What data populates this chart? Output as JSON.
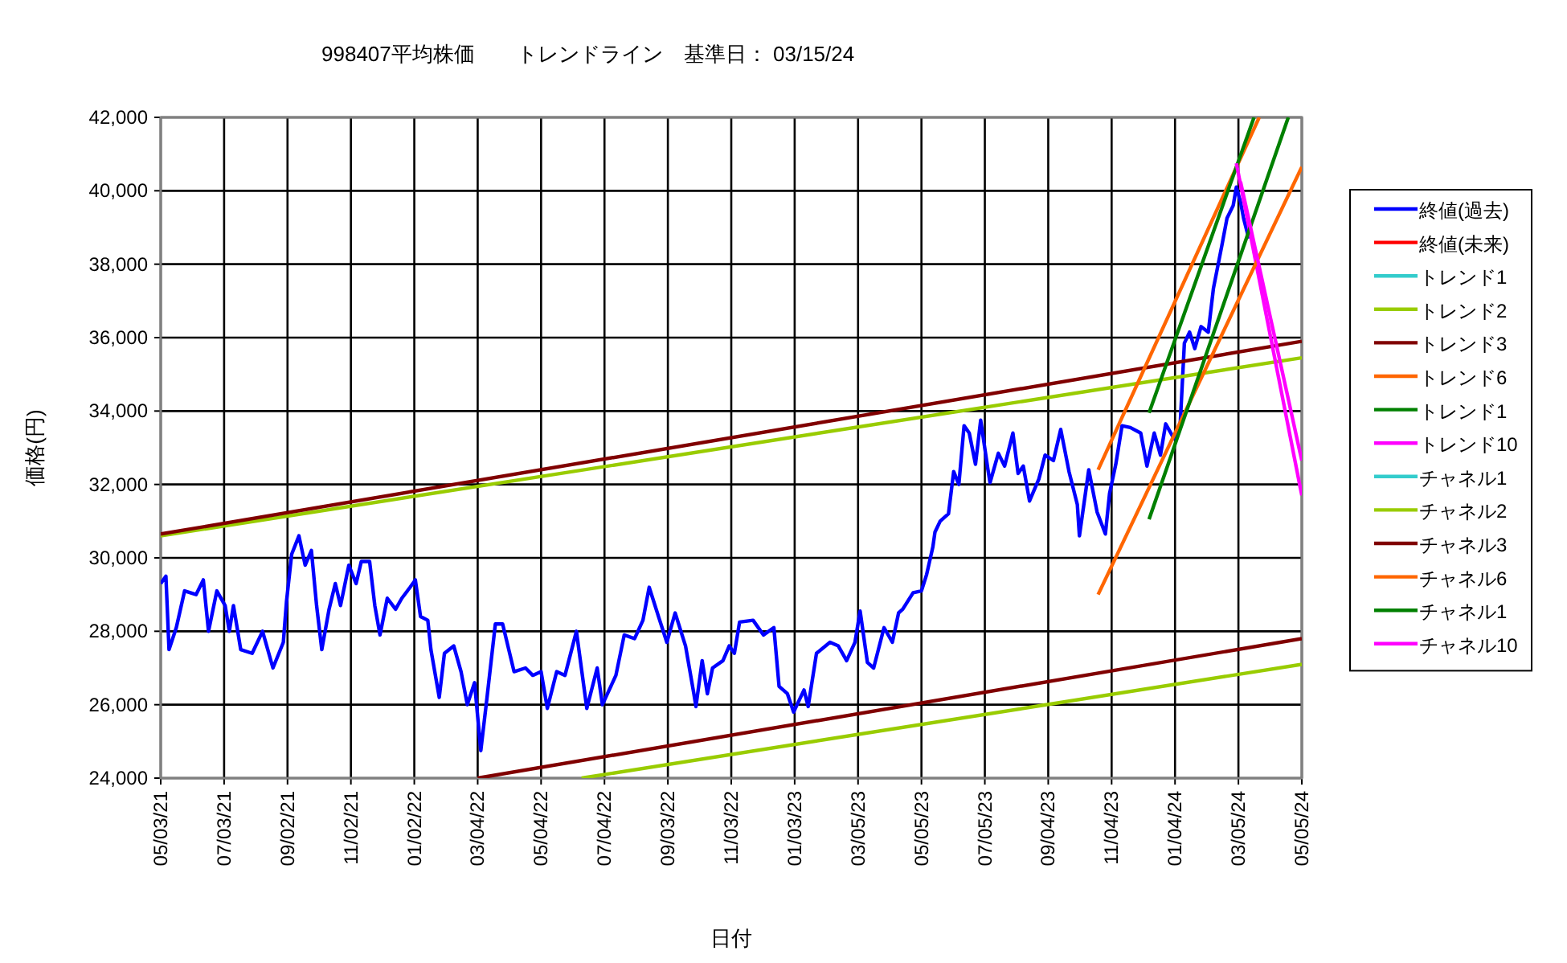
{
  "chart_data": {
    "type": "line",
    "title": "998407平均株価　　トレンドライン　基準日： 03/15/24",
    "xlabel": "日付",
    "ylabel": "価格(円)",
    "legend": "right",
    "grid": true,
    "xlim": [
      "2021-05-03",
      "2024-05-05"
    ],
    "ylim": [
      24000,
      42000
    ],
    "xticks": [
      {
        "value": "2021-05-03",
        "label": "05/03/21"
      },
      {
        "value": "2021-07-03",
        "label": "07/03/21"
      },
      {
        "value": "2021-09-02",
        "label": "09/02/21"
      },
      {
        "value": "2021-11-02",
        "label": "11/02/21"
      },
      {
        "value": "2022-01-02",
        "label": "01/02/22"
      },
      {
        "value": "2022-03-04",
        "label": "03/04/22"
      },
      {
        "value": "2022-05-04",
        "label": "05/04/22"
      },
      {
        "value": "2022-07-04",
        "label": "07/04/22"
      },
      {
        "value": "2022-09-03",
        "label": "09/03/22"
      },
      {
        "value": "2022-11-03",
        "label": "11/03/22"
      },
      {
        "value": "2023-01-03",
        "label": "01/03/23"
      },
      {
        "value": "2023-03-05",
        "label": "03/05/23"
      },
      {
        "value": "2023-05-05",
        "label": "05/05/23"
      },
      {
        "value": "2023-07-05",
        "label": "07/05/23"
      },
      {
        "value": "2023-09-04",
        "label": "09/04/23"
      },
      {
        "value": "2023-11-04",
        "label": "11/04/23"
      },
      {
        "value": "2024-01-04",
        "label": "01/04/24"
      },
      {
        "value": "2024-03-05",
        "label": "03/05/24"
      },
      {
        "value": "2024-05-05",
        "label": "05/05/24"
      }
    ],
    "yticks": [
      {
        "value": 24000,
        "label": "24,000"
      },
      {
        "value": 26000,
        "label": "26,000"
      },
      {
        "value": 28000,
        "label": "28,000"
      },
      {
        "value": 30000,
        "label": "30,000"
      },
      {
        "value": 32000,
        "label": "32,000"
      },
      {
        "value": 34000,
        "label": "34,000"
      },
      {
        "value": 36000,
        "label": "36,000"
      },
      {
        "value": 38000,
        "label": "38,000"
      },
      {
        "value": 40000,
        "label": "40,000"
      },
      {
        "value": 42000,
        "label": "42,000"
      }
    ],
    "series": [
      {
        "name": "終値(過去)",
        "color": "#0000ff",
        "x": [
          "2021-05-03",
          "2021-05-08",
          "2021-05-11",
          "2021-05-18",
          "2021-05-26",
          "2021-06-06",
          "2021-06-13",
          "2021-06-18",
          "2021-06-26",
          "2021-07-04",
          "2021-07-08",
          "2021-07-12",
          "2021-07-19",
          "2021-07-30",
          "2021-08-09",
          "2021-08-19",
          "2021-08-29",
          "2021-09-01",
          "2021-09-06",
          "2021-09-13",
          "2021-09-19",
          "2021-09-25",
          "2021-09-30",
          "2021-10-05",
          "2021-10-12",
          "2021-10-18",
          "2021-10-23",
          "2021-10-31",
          "2021-11-07",
          "2021-11-12",
          "2021-11-20",
          "2021-11-25",
          "2021-11-30",
          "2021-12-07",
          "2021-12-15",
          "2021-12-21",
          "2021-12-29",
          "2022-01-03",
          "2022-01-08",
          "2022-01-15",
          "2022-01-18",
          "2022-01-26",
          "2022-01-31",
          "2022-02-09",
          "2022-02-16",
          "2022-02-22",
          "2022-03-01",
          "2022-03-07",
          "2022-03-13",
          "2022-03-21",
          "2022-03-28",
          "2022-04-08",
          "2022-04-19",
          "2022-04-26",
          "2022-05-04",
          "2022-05-10",
          "2022-05-19",
          "2022-05-27",
          "2022-06-07",
          "2022-06-17",
          "2022-06-27",
          "2022-07-02",
          "2022-07-15",
          "2022-07-23",
          "2022-08-02",
          "2022-08-10",
          "2022-08-16",
          "2022-08-25",
          "2022-09-02",
          "2022-09-10",
          "2022-09-20",
          "2022-09-28",
          "2022-09-30",
          "2022-10-06",
          "2022-10-11",
          "2022-10-16",
          "2022-10-26",
          "2022-11-01",
          "2022-11-06",
          "2022-11-11",
          "2022-11-24",
          "2022-12-04",
          "2022-12-14",
          "2022-12-19",
          "2022-12-27",
          "2023-01-02",
          "2023-01-12",
          "2023-01-16",
          "2023-01-24",
          "2023-02-06",
          "2023-02-14",
          "2023-02-22",
          "2023-03-02",
          "2023-03-07",
          "2023-03-14",
          "2023-03-20",
          "2023-03-30",
          "2023-04-07",
          "2023-04-13",
          "2023-04-17",
          "2023-04-27",
          "2023-05-05",
          "2023-05-10",
          "2023-05-16",
          "2023-05-18",
          "2023-05-23",
          "2023-05-31",
          "2023-06-05",
          "2023-06-10",
          "2023-06-15",
          "2023-06-20",
          "2023-06-26",
          "2023-07-01",
          "2023-07-08",
          "2023-07-10",
          "2023-07-18",
          "2023-07-24",
          "2023-08-01",
          "2023-08-06",
          "2023-08-11",
          "2023-08-17",
          "2023-08-26",
          "2023-09-01",
          "2023-09-09",
          "2023-09-16",
          "2023-09-24",
          "2023-10-02",
          "2023-10-04",
          "2023-10-13",
          "2023-10-21",
          "2023-10-29",
          "2023-11-02",
          "2023-11-08",
          "2023-11-14",
          "2023-11-22",
          "2023-12-02",
          "2023-12-08",
          "2023-12-15",
          "2023-12-21",
          "2023-12-26",
          "2024-01-03",
          "2024-01-09",
          "2024-01-13",
          "2024-01-18",
          "2024-01-23",
          "2024-01-29",
          "2024-02-05",
          "2024-02-10",
          "2024-02-18",
          "2024-02-23",
          "2024-02-29",
          "2024-03-03",
          "2024-03-07",
          "2024-03-10",
          "2024-03-15"
        ],
        "values": [
          29300,
          29500,
          27500,
          28100,
          29100,
          29000,
          29400,
          28000,
          29100,
          28700,
          28000,
          28700,
          27500,
          27400,
          28000,
          27000,
          27700,
          28800,
          30100,
          30600,
          29800,
          30200,
          28700,
          27500,
          28600,
          29300,
          28700,
          29800,
          29300,
          29900,
          29900,
          28700,
          27900,
          28900,
          28600,
          28900,
          29200,
          29400,
          28400,
          28300,
          27500,
          26200,
          27400,
          27600,
          26900,
          26000,
          26600,
          24750,
          26200,
          28200,
          28200,
          26900,
          27000,
          26800,
          26900,
          25900,
          26900,
          26800,
          28000,
          25900,
          27000,
          26000,
          26800,
          27900,
          27800,
          28300,
          29200,
          28400,
          27700,
          28500,
          27600,
          26300,
          25950,
          27200,
          26300,
          27000,
          27200,
          27600,
          27400,
          28250,
          28300,
          27900,
          28100,
          26500,
          26300,
          25800,
          26400,
          25950,
          27400,
          27700,
          27600,
          27200,
          27700,
          28550,
          27150,
          27000,
          28100,
          27700,
          28500,
          28600,
          29050,
          29100,
          29550,
          30300,
          30700,
          31000,
          31200,
          32350,
          32000,
          33600,
          33400,
          32550,
          33750,
          32400,
          32050,
          32850,
          32500,
          33400,
          32300,
          32500,
          31550,
          32150,
          32800,
          32650,
          33500,
          32350,
          31450,
          30600,
          32400,
          31250,
          30650,
          31750,
          32550,
          33600,
          33550,
          33400,
          32500,
          33400,
          32800,
          33650,
          33250,
          33650,
          35850,
          36150,
          35700,
          36300,
          36150,
          37350,
          38500,
          39250,
          39600,
          40100,
          39700,
          39250,
          38700
        ]
      },
      {
        "name": "終値(未来)",
        "color": "#ff0000"
      },
      {
        "name": "トレンド1",
        "color": "#33cccc"
      },
      {
        "name": "トレンド2",
        "color": "#99cc00",
        "x": [
          "2021-05-03",
          "2024-05-05"
        ],
        "values": [
          30600,
          35450
        ]
      },
      {
        "name": "トレンド3",
        "color": "#800000",
        "x": [
          "2021-05-03",
          "2024-05-05"
        ],
        "values": [
          30650,
          35900
        ]
      },
      {
        "name": "トレンド6",
        "color": "#ff6600",
        "x": [
          "2023-10-22",
          "2024-03-25"
        ],
        "values": [
          32400,
          42000
        ]
      },
      {
        "name": "トレンド1",
        "color": "#008000",
        "x": [
          "2023-12-10",
          "2024-03-20"
        ],
        "values": [
          33950,
          42000
        ]
      },
      {
        "name": "トレンド10",
        "color": "#ff00ff",
        "x": [
          "2024-03-03",
          "2024-05-05"
        ],
        "values": [
          40750,
          31700
        ]
      },
      {
        "name": "チャネル1",
        "color": "#33cccc"
      },
      {
        "name": "チャネル2",
        "color": "#99cc00",
        "x": [
          "2022-06-12",
          "2024-05-05"
        ],
        "values": [
          24000,
          27100
        ]
      },
      {
        "name": "チャネル3",
        "color": "#800000",
        "x": [
          "2022-03-04",
          "2024-05-05"
        ],
        "values": [
          24000,
          27800
        ]
      },
      {
        "name": "チャネル6",
        "color": "#ff6600",
        "x": [
          "2023-10-22",
          "2024-05-05"
        ],
        "values": [
          29000,
          40650
        ]
      },
      {
        "name": "チャネル1",
        "color": "#008000",
        "x": [
          "2023-12-10",
          "2024-04-22"
        ],
        "values": [
          31050,
          42000
        ]
      },
      {
        "name": "チャネル10",
        "color": "#ff00ff",
        "x": [
          "2024-03-07",
          "2024-05-05"
        ],
        "values": [
          40250,
          32650
        ]
      }
    ]
  }
}
